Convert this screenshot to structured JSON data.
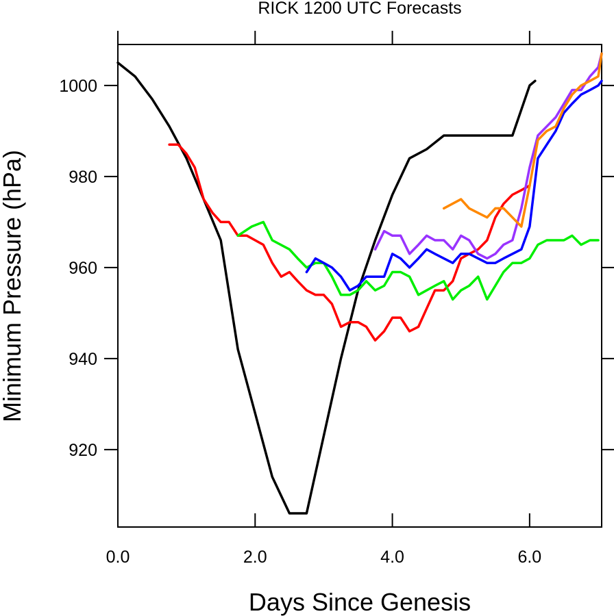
{
  "chart_data": {
    "type": "line",
    "title": "RICK 1200 UTC Forecasts",
    "xlabel": "Days Since Genesis",
    "ylabel": "Minimum Pressure (hPa)",
    "xlim": [
      0,
      7.05
    ],
    "ylim": [
      903,
      1009
    ],
    "x_ticks": [
      0,
      2,
      4,
      6
    ],
    "x_tick_labels": [
      "0.0",
      "2.0",
      "4.0",
      "6.0"
    ],
    "y_ticks": [
      920,
      940,
      960,
      980,
      1000
    ],
    "y_tick_labels": [
      "920",
      "940",
      "960",
      "980",
      "1000"
    ],
    "grid": false,
    "legend": "none",
    "series": [
      {
        "color": "#000000",
        "points": [
          [
            0,
            1005
          ],
          [
            0.25,
            1002
          ],
          [
            0.5,
            997
          ],
          [
            0.75,
            991
          ],
          [
            1.0,
            984
          ],
          [
            1.25,
            975
          ],
          [
            1.5,
            966
          ],
          [
            1.75,
            942
          ],
          [
            2.0,
            928
          ],
          [
            2.25,
            914
          ],
          [
            2.5,
            906
          ],
          [
            2.75,
            906
          ],
          [
            3.0,
            923
          ],
          [
            3.25,
            940
          ],
          [
            3.5,
            955
          ],
          [
            3.75,
            966
          ],
          [
            4.0,
            976
          ],
          [
            4.25,
            984
          ],
          [
            4.5,
            986
          ],
          [
            4.75,
            989
          ],
          [
            5.0,
            989
          ],
          [
            5.25,
            989
          ],
          [
            5.5,
            989
          ],
          [
            5.75,
            989
          ],
          [
            6.0,
            1000
          ],
          [
            6.08,
            1001
          ]
        ]
      },
      {
        "color": "#ff0000",
        "points": [
          [
            0.75,
            987
          ],
          [
            0.88,
            987
          ],
          [
            1.0,
            985
          ],
          [
            1.12,
            982
          ],
          [
            1.25,
            975
          ],
          [
            1.38,
            972
          ],
          [
            1.5,
            970
          ],
          [
            1.62,
            970
          ],
          [
            1.75,
            967
          ],
          [
            1.88,
            967
          ],
          [
            2.0,
            966
          ],
          [
            2.12,
            965
          ],
          [
            2.25,
            961
          ],
          [
            2.38,
            958
          ],
          [
            2.5,
            959
          ],
          [
            2.62,
            957
          ],
          [
            2.75,
            955
          ],
          [
            2.88,
            954
          ],
          [
            3.0,
            954
          ],
          [
            3.12,
            952
          ],
          [
            3.25,
            947
          ],
          [
            3.38,
            948
          ],
          [
            3.5,
            948
          ],
          [
            3.62,
            947
          ],
          [
            3.75,
            944
          ],
          [
            3.88,
            946
          ],
          [
            4.0,
            949
          ],
          [
            4.12,
            949
          ],
          [
            4.25,
            946
          ],
          [
            4.38,
            947
          ],
          [
            4.5,
            951
          ],
          [
            4.62,
            955
          ],
          [
            4.75,
            955
          ],
          [
            4.88,
            957
          ],
          [
            5.0,
            962
          ],
          [
            5.12,
            963
          ],
          [
            5.25,
            964
          ],
          [
            5.38,
            966
          ],
          [
            5.5,
            971
          ],
          [
            5.62,
            974
          ],
          [
            5.75,
            976
          ],
          [
            5.88,
            977
          ],
          [
            6.0,
            978
          ]
        ]
      },
      {
        "color": "#00ee00",
        "points": [
          [
            1.75,
            967
          ],
          [
            1.95,
            969
          ],
          [
            2.12,
            970
          ],
          [
            2.25,
            966
          ],
          [
            2.5,
            964
          ],
          [
            2.62,
            962
          ],
          [
            2.75,
            960
          ],
          [
            2.88,
            961
          ],
          [
            3.0,
            961
          ],
          [
            3.12,
            958
          ],
          [
            3.25,
            954
          ],
          [
            3.38,
            954
          ],
          [
            3.5,
            955
          ],
          [
            3.62,
            957
          ],
          [
            3.75,
            955
          ],
          [
            3.88,
            956
          ],
          [
            4.0,
            959
          ],
          [
            4.12,
            959
          ],
          [
            4.25,
            958
          ],
          [
            4.38,
            954
          ],
          [
            4.5,
            955
          ],
          [
            4.62,
            956
          ],
          [
            4.75,
            957
          ],
          [
            4.88,
            953
          ],
          [
            5.0,
            955
          ],
          [
            5.12,
            956
          ],
          [
            5.25,
            958
          ],
          [
            5.38,
            953
          ],
          [
            5.5,
            956
          ],
          [
            5.62,
            959
          ],
          [
            5.75,
            961
          ],
          [
            5.88,
            961
          ],
          [
            6.0,
            962
          ],
          [
            6.12,
            965
          ],
          [
            6.25,
            966
          ],
          [
            6.5,
            966
          ],
          [
            6.62,
            967
          ],
          [
            6.75,
            965
          ],
          [
            6.88,
            966
          ],
          [
            7.0,
            966
          ]
        ]
      },
      {
        "color": "#0000ff",
        "points": [
          [
            2.75,
            959
          ],
          [
            2.88,
            962
          ],
          [
            3.0,
            961
          ],
          [
            3.12,
            960
          ],
          [
            3.25,
            958
          ],
          [
            3.38,
            955
          ],
          [
            3.5,
            956
          ],
          [
            3.62,
            958
          ],
          [
            3.75,
            958
          ],
          [
            3.88,
            958
          ],
          [
            4.0,
            963
          ],
          [
            4.12,
            962
          ],
          [
            4.25,
            960
          ],
          [
            4.38,
            962
          ],
          [
            4.5,
            964
          ],
          [
            4.62,
            963
          ],
          [
            4.75,
            962
          ],
          [
            4.88,
            961
          ],
          [
            5.0,
            963
          ],
          [
            5.12,
            963
          ],
          [
            5.25,
            962
          ],
          [
            5.38,
            961
          ],
          [
            5.5,
            961
          ],
          [
            5.62,
            962
          ],
          [
            5.75,
            963
          ],
          [
            5.88,
            964
          ],
          [
            6.0,
            969
          ],
          [
            6.12,
            984
          ],
          [
            6.25,
            987
          ],
          [
            6.38,
            990
          ],
          [
            6.5,
            994
          ],
          [
            6.62,
            996
          ],
          [
            6.75,
            998
          ],
          [
            6.88,
            999
          ],
          [
            7.0,
            1000
          ],
          [
            7.05,
            1001
          ]
        ]
      },
      {
        "color": "#9933ff",
        "points": [
          [
            3.75,
            964
          ],
          [
            3.88,
            968
          ],
          [
            4.0,
            967
          ],
          [
            4.12,
            967
          ],
          [
            4.25,
            963
          ],
          [
            4.38,
            965
          ],
          [
            4.5,
            967
          ],
          [
            4.62,
            966
          ],
          [
            4.75,
            966
          ],
          [
            4.88,
            964
          ],
          [
            5.0,
            967
          ],
          [
            5.12,
            966
          ],
          [
            5.25,
            963
          ],
          [
            5.38,
            962
          ],
          [
            5.5,
            963
          ],
          [
            5.62,
            965
          ],
          [
            5.75,
            966
          ],
          [
            5.88,
            973
          ],
          [
            6.0,
            982
          ],
          [
            6.12,
            989
          ],
          [
            6.25,
            991
          ],
          [
            6.38,
            993
          ],
          [
            6.5,
            996
          ],
          [
            6.62,
            999
          ],
          [
            6.75,
            999
          ],
          [
            6.88,
            1002
          ],
          [
            7.0,
            1004
          ],
          [
            7.05,
            1007
          ]
        ]
      },
      {
        "color": "#ff8800",
        "points": [
          [
            4.75,
            973
          ],
          [
            5.0,
            975
          ],
          [
            5.12,
            973
          ],
          [
            5.25,
            972
          ],
          [
            5.38,
            971
          ],
          [
            5.5,
            973
          ],
          [
            5.62,
            973
          ],
          [
            5.75,
            971
          ],
          [
            5.88,
            969
          ],
          [
            6.0,
            978
          ],
          [
            6.12,
            988
          ],
          [
            6.25,
            990
          ],
          [
            6.38,
            991
          ],
          [
            6.5,
            995
          ],
          [
            6.62,
            998
          ],
          [
            6.75,
            1000
          ],
          [
            6.88,
            1001
          ],
          [
            7.0,
            1002
          ],
          [
            7.05,
            1007
          ]
        ]
      }
    ]
  }
}
